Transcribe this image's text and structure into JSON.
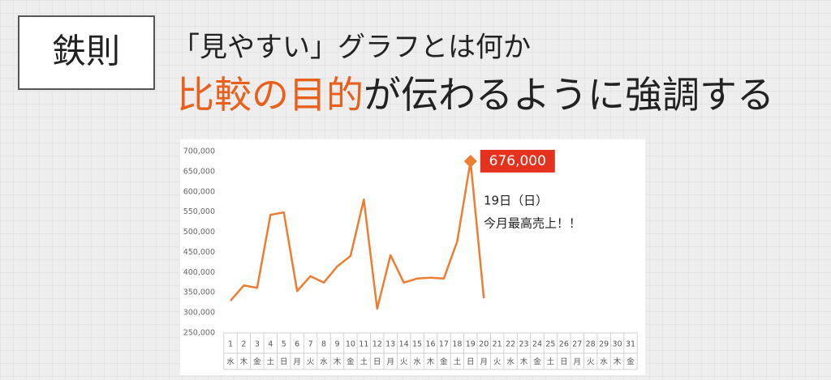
{
  "header": {
    "badge": "鉄則",
    "subtitle": "「見やすい」グラフとは何か",
    "headline": [
      {
        "text": "比較の目的",
        "color": "#e8601c"
      },
      {
        "text": "が伝わるように強調する",
        "color": "#222222"
      }
    ]
  },
  "chart_data": {
    "type": "line",
    "categories": [
      "1",
      "2",
      "3",
      "4",
      "5",
      "6",
      "7",
      "8",
      "9",
      "10",
      "11",
      "12",
      "13",
      "14",
      "15",
      "16",
      "17",
      "18",
      "19",
      "20",
      "21",
      "22",
      "23",
      "24",
      "25",
      "26",
      "27",
      "28",
      "29",
      "30",
      "31"
    ],
    "weekdays": [
      "水",
      "木",
      "金",
      "土",
      "日",
      "月",
      "火",
      "水",
      "木",
      "金",
      "土",
      "日",
      "月",
      "火",
      "水",
      "木",
      "金",
      "土",
      "日",
      "月",
      "火",
      "水",
      "木",
      "金",
      "土",
      "日",
      "月",
      "火",
      "水",
      "木",
      "金"
    ],
    "values": [
      330000,
      368000,
      362000,
      543000,
      549000,
      354000,
      391000,
      375000,
      415000,
      441000,
      581000,
      310000,
      443000,
      375000,
      385000,
      387000,
      385000,
      477000,
      676000,
      336000,
      null,
      null,
      null,
      null,
      null,
      null,
      null,
      null,
      null,
      null,
      null
    ],
    "value_labels": [
      null,
      null,
      null,
      null,
      null,
      null,
      null,
      null,
      null,
      null,
      null,
      null,
      null,
      null,
      null,
      null,
      null,
      null,
      "676,000",
      null,
      null,
      null,
      null,
      null,
      null,
      null,
      null,
      null,
      null,
      null,
      null
    ],
    "color": "#ed7d31",
    "label_color": "#e5321e",
    "annotations": [
      "19日（日）",
      "今月最高売上！！"
    ],
    "ylim": [
      250000,
      700000
    ],
    "yticks": [
      {
        "value": 250000,
        "label": "250,000"
      },
      {
        "value": 300000,
        "label": "300,000"
      },
      {
        "value": 350000,
        "label": "350,000"
      },
      {
        "value": 400000,
        "label": "400,000"
      },
      {
        "value": 450000,
        "label": "450,000"
      },
      {
        "value": 500000,
        "label": "500,000"
      },
      {
        "value": 550000,
        "label": "550,000"
      },
      {
        "value": 600000,
        "label": "600,000"
      },
      {
        "value": 650000,
        "label": "650,000"
      },
      {
        "value": 700000,
        "label": "700,000"
      }
    ],
    "grid": false
  }
}
